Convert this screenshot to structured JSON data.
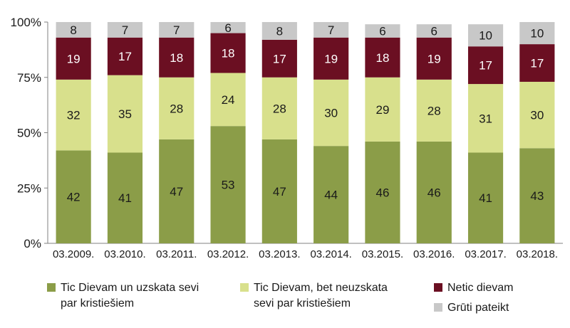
{
  "chart_data": {
    "type": "bar",
    "stacked": true,
    "percent": true,
    "categories": [
      "03.2009.",
      "03.2010.",
      "03.2011.",
      "03.2012.",
      "03.2013.",
      "03.2014.",
      "03.2015.",
      "03.2016.",
      "03.2017.",
      "03.2018."
    ],
    "series": [
      {
        "name": "Tic Dievam un uzskata sevi\npar kristiešiem",
        "color": "#8b9d48",
        "values": [
          42,
          41,
          47,
          53,
          47,
          44,
          46,
          46,
          41,
          43
        ]
      },
      {
        "name": "Tic Dievam, bet neuzskata\nsevi par kristiešiem",
        "color": "#d8e08c",
        "values": [
          32,
          35,
          28,
          24,
          28,
          30,
          29,
          28,
          31,
          30
        ]
      },
      {
        "name": "Netic dievam",
        "color": "#6b0f22",
        "values": [
          19,
          17,
          18,
          18,
          17,
          19,
          18,
          19,
          17,
          17
        ]
      },
      {
        "name": "Grūti pateikt",
        "color": "#c8c8c8",
        "values": [
          8,
          7,
          7,
          6,
          8,
          7,
          6,
          6,
          10,
          10
        ]
      }
    ],
    "yticks": [
      "0%",
      "25%",
      "50%",
      "75%",
      "100%"
    ],
    "ylim": [
      0,
      100
    ],
    "title": "",
    "xlabel": "",
    "ylabel": "",
    "grid": false,
    "legend": "bottom"
  }
}
